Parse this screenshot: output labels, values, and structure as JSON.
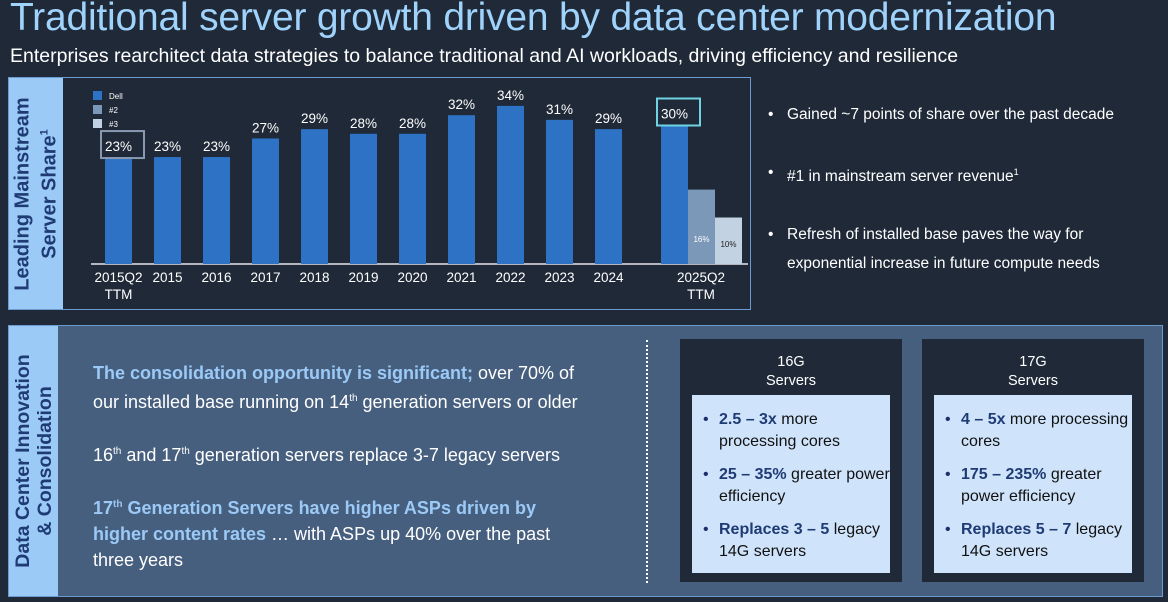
{
  "header": {
    "title": "Traditional server growth driven by data center modernization",
    "subtitle": "Enterprises rearchitect data strategies to balance traditional and AI workloads, driving efficiency and resilience"
  },
  "top_section": {
    "side_label_line1": "Leading Mainstream",
    "side_label_line2": "Server Share",
    "side_label_sup": "1",
    "bullets": [
      {
        "text": "Gained ~7 points of share over the past decade",
        "sup": ""
      },
      {
        "text": "#1 in mainstream server revenue",
        "sup": "1"
      },
      {
        "text": "Refresh of installed base paves the way for exponential increase in future compute needs",
        "sup": ""
      }
    ]
  },
  "chart_data": {
    "type": "bar",
    "title": "",
    "xlabel": "",
    "ylabel": "",
    "grid": false,
    "legend_position": "top-left",
    "categories": [
      "2015Q2\nTTM",
      "2015",
      "2016",
      "2017",
      "2018",
      "2019",
      "2020",
      "2021",
      "2022",
      "2023",
      "2024",
      "2025Q2\nTTM"
    ],
    "series": [
      {
        "name": "Dell",
        "color": "#2e72c6",
        "values": [
          23,
          23,
          23,
          27,
          29,
          28,
          28,
          32,
          34,
          31,
          29,
          30
        ]
      },
      {
        "name": "#2",
        "color": "#7b98b8",
        "values": [
          null,
          null,
          null,
          null,
          null,
          null,
          null,
          null,
          null,
          null,
          null,
          16
        ]
      },
      {
        "name": "#3",
        "color": "#c2d2e2",
        "values": [
          null,
          null,
          null,
          null,
          null,
          null,
          null,
          null,
          null,
          null,
          null,
          10
        ]
      }
    ],
    "data_labels": [
      "23%",
      "23%",
      "23%",
      "27%",
      "29%",
      "28%",
      "28%",
      "32%",
      "34%",
      "31%",
      "29%",
      "30%"
    ],
    "secondary_labels": {
      "#2": "16%",
      "#3": "10%"
    },
    "highlighted_categories": [
      "2015Q2\nTTM",
      "2025Q2\nTTM"
    ],
    "ylim": [
      0,
      40
    ]
  },
  "bottom_section": {
    "side_label_line1": "Data Center Innovation",
    "side_label_line2": "& Consolidation",
    "para1_highlight": "The consolidation opportunity is significant;",
    "para1_rest_a": " over 70% of our installed base running on 14",
    "para1_sup": "th",
    "para1_rest_b": " generation servers or older",
    "para2_a": "16",
    "para2_sup1": "th",
    "para2_b": " and 17",
    "para2_sup2": "th",
    "para2_c": " generation servers replace 3-7 legacy servers",
    "para3_hl_a": "17",
    "para3_sup": "th",
    "para3_hl_b": " Generation Servers have higher ASPs driven by higher content rates",
    "para3_rest": " … with ASPs up 40% over the past three years",
    "cards": [
      {
        "title_line1": "16G",
        "title_line2": "Servers",
        "items": [
          {
            "bold": "2.5 – 3x",
            "rest": " more processing cores"
          },
          {
            "bold": "25 – 35%",
            "rest": " greater power efficiency"
          },
          {
            "bold": "Replaces 3 – 5",
            "rest": " legacy 14G servers"
          }
        ]
      },
      {
        "title_line1": "17G",
        "title_line2": "Servers",
        "items": [
          {
            "bold": "4 – 5x",
            "rest": " more processing cores"
          },
          {
            "bold": "175 – 235%",
            "rest": " greater power efficiency"
          },
          {
            "bold": "Replaces 5 – 7",
            "rest": " legacy 14G servers"
          }
        ]
      }
    ]
  }
}
